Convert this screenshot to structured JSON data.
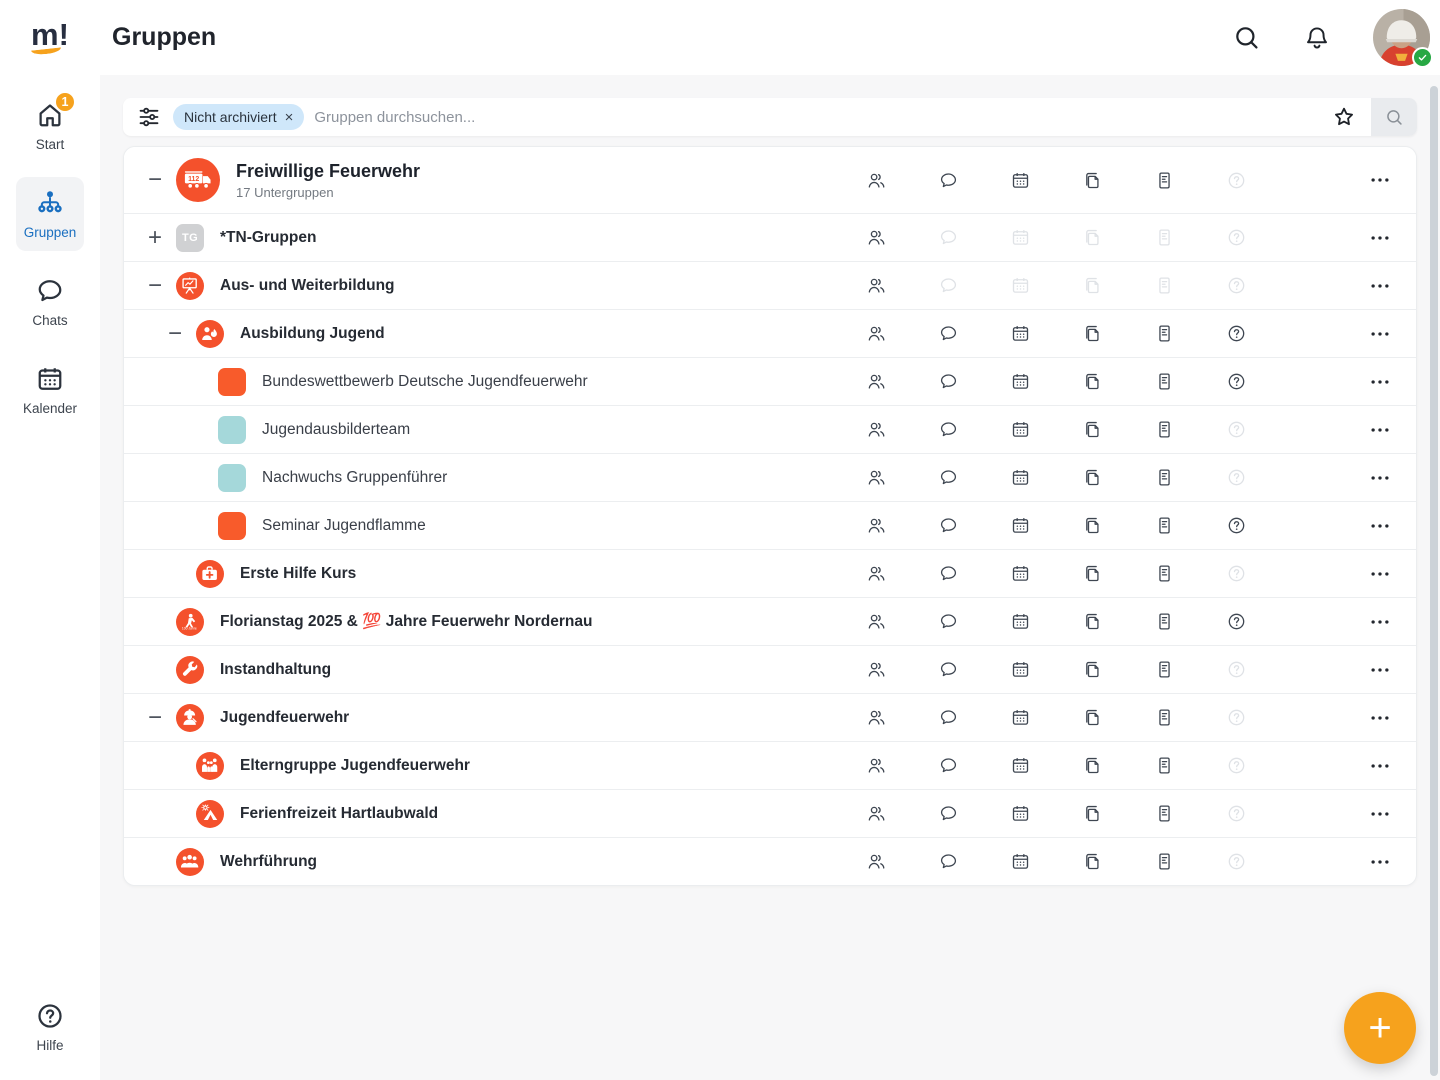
{
  "brand": {
    "logo_text": "m!"
  },
  "header": {
    "title": "Gruppen"
  },
  "topbar": {
    "icons": [
      "search-icon",
      "bell-icon",
      "profile-avatar"
    ],
    "profile_status_icon": "check-badge"
  },
  "sidebar": {
    "items": [
      {
        "label": "Start",
        "icon": "home-icon",
        "badge": "1",
        "active": false
      },
      {
        "label": "Gruppen",
        "icon": "org-tree-icon",
        "active": true
      },
      {
        "label": "Chats",
        "icon": "chat-bubble-icon",
        "active": false
      },
      {
        "label": "Kalender",
        "icon": "calendar-icon",
        "active": false
      }
    ],
    "help": {
      "label": "Hilfe",
      "icon": "help-circle-icon"
    }
  },
  "search": {
    "chip_label": "Nicht archiviert",
    "chip_remove_glyph": "×",
    "placeholder": "Gruppen durchsuchen...",
    "icons": [
      "filter-sliders-icon",
      "star-icon",
      "search-submit-icon"
    ]
  },
  "groups": {
    "toggle_glyphs": {
      "collapse": "−",
      "expand": "+"
    },
    "action_columns": [
      "members",
      "chat",
      "calendar",
      "copy",
      "notes",
      "help"
    ],
    "rows": [
      {
        "title": "Freiwillige Feuerwehr",
        "subtitle": "17 Untergruppen",
        "level": 0,
        "size": "lg",
        "bold": true,
        "toggle": "collapse",
        "avatar": {
          "shape": "circle",
          "color": "#f4512c",
          "glyph": "fire-truck"
        },
        "actions": {
          "members": true,
          "chat": true,
          "calendar": true,
          "copy": true,
          "notes": true,
          "help": false
        }
      },
      {
        "title": "*TN-Gruppen",
        "level": 1,
        "bold": true,
        "toggle": "expand",
        "avatar": {
          "shape": "square",
          "color": "#d0d1d3",
          "text": "TG"
        },
        "actions": {
          "members": true,
          "chat": false,
          "calendar": false,
          "copy": false,
          "notes": false,
          "help": false
        }
      },
      {
        "title": "Aus- und Weiterbildung",
        "level": 1,
        "bold": true,
        "toggle": "collapse",
        "avatar": {
          "shape": "circle",
          "color": "#f4512c",
          "glyph": "training-board"
        },
        "actions": {
          "members": true,
          "chat": false,
          "calendar": false,
          "copy": false,
          "notes": false,
          "help": false
        }
      },
      {
        "title": "Ausbildung Jugend",
        "level": 2,
        "bold": true,
        "toggle": "collapse",
        "avatar": {
          "shape": "circle",
          "color": "#f4512c",
          "glyph": "youth-flame"
        },
        "actions": {
          "members": true,
          "chat": true,
          "calendar": true,
          "copy": true,
          "notes": true,
          "help": true
        }
      },
      {
        "title": "Bundeswettbewerb Deutsche Jugendfeuerwehr",
        "level": 3,
        "bold": false,
        "avatar": {
          "shape": "square",
          "color": "#f85b2b"
        },
        "actions": {
          "members": true,
          "chat": true,
          "calendar": true,
          "copy": true,
          "notes": true,
          "help": true
        }
      },
      {
        "title": "Jugendausbilderteam",
        "level": 3,
        "bold": false,
        "avatar": {
          "shape": "square",
          "color": "#a5d8da"
        },
        "actions": {
          "members": true,
          "chat": true,
          "calendar": true,
          "copy": true,
          "notes": true,
          "help": false
        }
      },
      {
        "title": "Nachwuchs Gruppenführer",
        "level": 3,
        "bold": false,
        "avatar": {
          "shape": "square",
          "color": "#a5d8da"
        },
        "actions": {
          "members": true,
          "chat": true,
          "calendar": true,
          "copy": true,
          "notes": true,
          "help": false
        }
      },
      {
        "title": "Seminar Jugendflamme",
        "level": 3,
        "bold": false,
        "avatar": {
          "shape": "square",
          "color": "#f85b2b"
        },
        "actions": {
          "members": true,
          "chat": true,
          "calendar": true,
          "copy": true,
          "notes": true,
          "help": true
        }
      },
      {
        "title": "Erste Hilfe Kurs",
        "level": 2,
        "bold": true,
        "avatar": {
          "shape": "circle",
          "color": "#f4512c",
          "glyph": "first-aid"
        },
        "actions": {
          "members": true,
          "chat": true,
          "calendar": true,
          "copy": true,
          "notes": true,
          "help": false
        }
      },
      {
        "title": "Florianstag 2025 & 💯 Jahre Feuerwehr Nordernau",
        "level": 1,
        "bold": true,
        "avatar": {
          "shape": "circle",
          "color": "#f4512c",
          "glyph": "anniversary-100"
        },
        "actions": {
          "members": true,
          "chat": true,
          "calendar": true,
          "copy": true,
          "notes": true,
          "help": true
        }
      },
      {
        "title": "Instandhaltung",
        "level": 1,
        "bold": true,
        "avatar": {
          "shape": "circle",
          "color": "#f4512c",
          "glyph": "wrench"
        },
        "actions": {
          "members": true,
          "chat": true,
          "calendar": true,
          "copy": true,
          "notes": true,
          "help": false
        }
      },
      {
        "title": "Jugendfeuerwehr",
        "level": 1,
        "bold": true,
        "toggle": "collapse",
        "avatar": {
          "shape": "circle",
          "color": "#f4512c",
          "glyph": "youth-firefighter"
        },
        "actions": {
          "members": true,
          "chat": true,
          "calendar": true,
          "copy": true,
          "notes": true,
          "help": false
        }
      },
      {
        "title": "Elterngruppe Jugendfeuerwehr",
        "level": 2,
        "bold": true,
        "avatar": {
          "shape": "circle",
          "color": "#f4512c",
          "glyph": "family"
        },
        "actions": {
          "members": true,
          "chat": true,
          "calendar": true,
          "copy": true,
          "notes": true,
          "help": false
        }
      },
      {
        "title": "Ferienfreizeit Hartlaubwald",
        "level": 2,
        "bold": true,
        "avatar": {
          "shape": "circle",
          "color": "#f4512c",
          "glyph": "tent"
        },
        "actions": {
          "members": true,
          "chat": true,
          "calendar": true,
          "copy": true,
          "notes": true,
          "help": false
        }
      },
      {
        "title": "Wehrführung",
        "level": 1,
        "bold": true,
        "avatar": {
          "shape": "circle",
          "color": "#f4512c",
          "glyph": "team"
        },
        "actions": {
          "members": true,
          "chat": true,
          "calendar": true,
          "copy": true,
          "notes": true,
          "help": false
        }
      }
    ]
  },
  "fab": {
    "label": "+"
  },
  "colors": {
    "accent_orange": "#f4512c",
    "square_orange": "#f85b2b",
    "teal_avatar": "#a5d8da",
    "gray_avatar": "#d0d1d3",
    "amber": "#f6a21d",
    "active_blue": "#1a6fc0",
    "chip_bg": "#cfe7fa",
    "status_green": "#27a844"
  }
}
